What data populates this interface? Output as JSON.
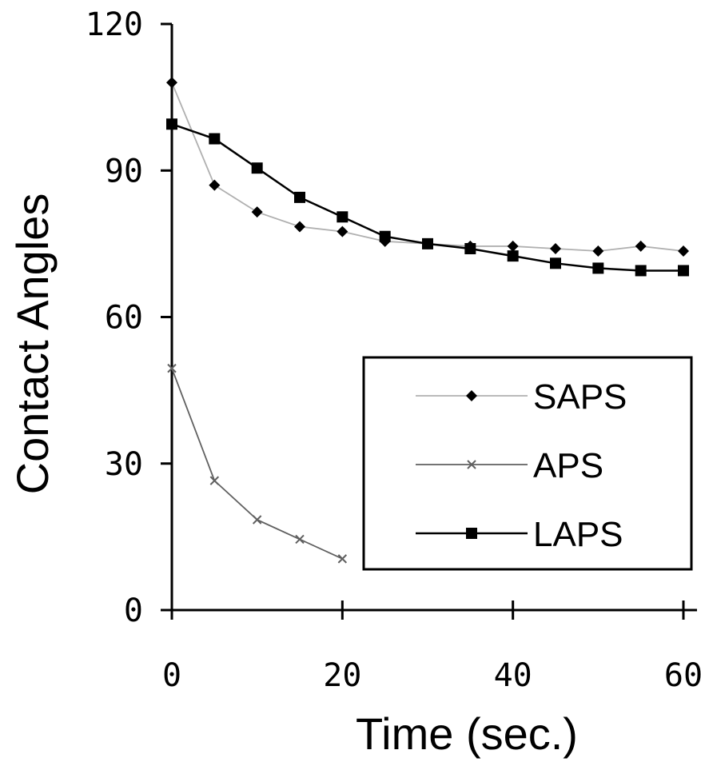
{
  "chart_data": {
    "type": "line",
    "title": "",
    "xlabel": "Time (sec.)",
    "ylabel": "Contact Angles",
    "xlim": [
      0,
      60
    ],
    "ylim": [
      0,
      120
    ],
    "xticks": [
      0,
      20,
      40,
      60
    ],
    "yticks": [
      0,
      30,
      60,
      90,
      120
    ],
    "grid": false,
    "legend_position": "bottom-right",
    "series": [
      {
        "name": "SAPS",
        "marker": "diamond",
        "color": "#b0b0b0",
        "x": [
          0,
          5,
          10,
          15,
          20,
          25,
          30,
          35,
          40,
          45,
          50,
          55,
          60
        ],
        "y": [
          108,
          87,
          81.5,
          78.5,
          77.5,
          75.5,
          75,
          74.5,
          74.5,
          74,
          73.5,
          74.5,
          73.5
        ]
      },
      {
        "name": "APS",
        "marker": "x",
        "color": "#606060",
        "x": [
          0,
          5,
          10,
          15,
          20
        ],
        "y": [
          49.5,
          26.5,
          18.5,
          14.5,
          10.5
        ]
      },
      {
        "name": "LAPS",
        "marker": "square",
        "color": "#000000",
        "x": [
          0,
          5,
          10,
          15,
          20,
          25,
          30,
          35,
          40,
          45,
          50,
          55,
          60
        ],
        "y": [
          99.5,
          96.5,
          90.5,
          84.5,
          80.5,
          76.5,
          75,
          74,
          72.5,
          71,
          70,
          69.5,
          69.5
        ]
      }
    ]
  }
}
